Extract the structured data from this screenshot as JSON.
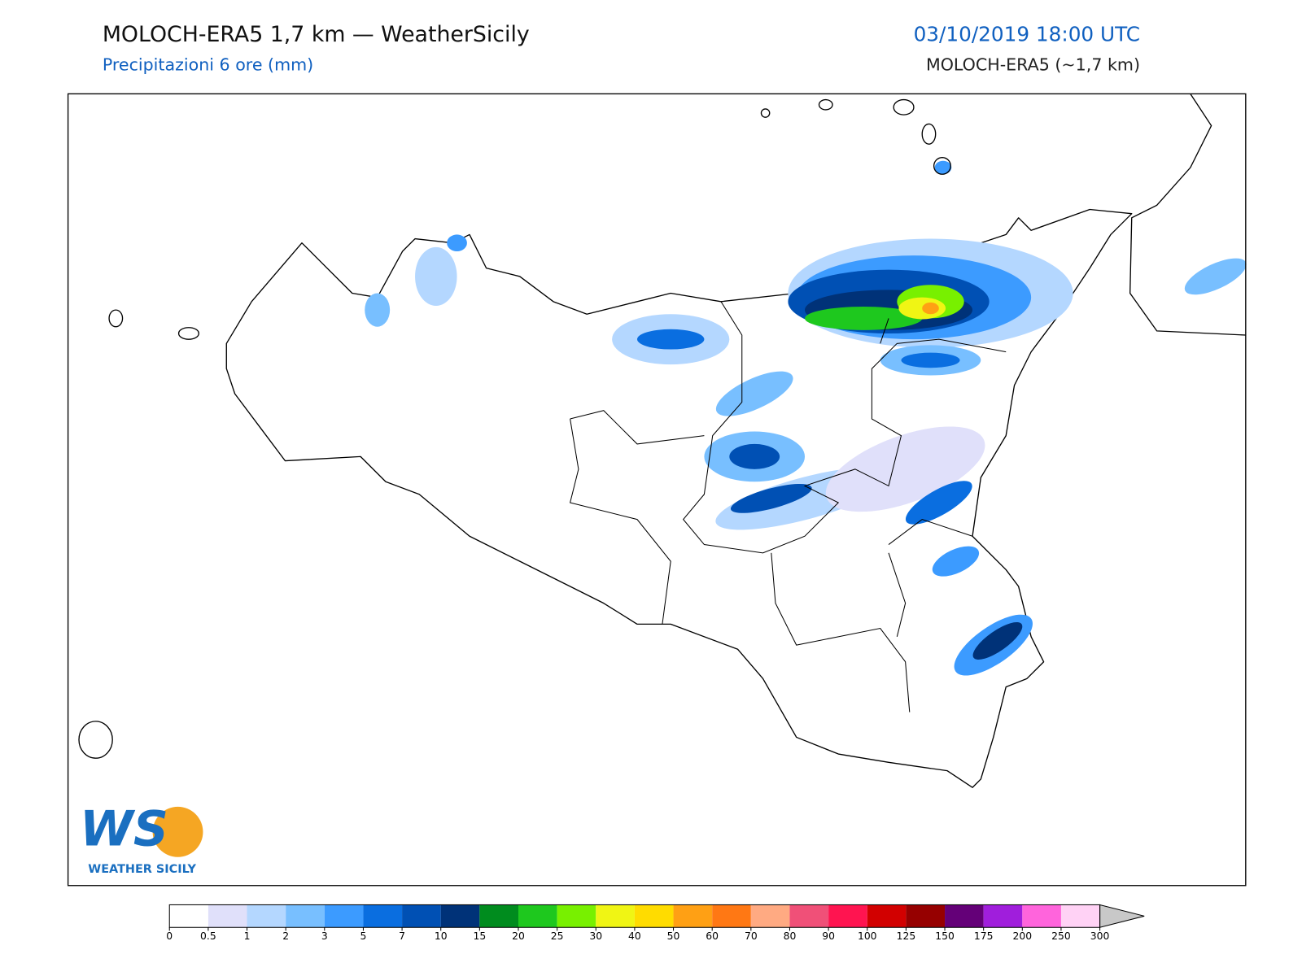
{
  "header": {
    "title": "MOLOCH-ERA5 1,7 km — WeatherSicily",
    "subtitle": "Precipitazioni 6 ore (mm)",
    "date": "03/10/2019 18:00 UTC",
    "model": "MOLOCH-ERA5 (~1,7 km)"
  },
  "logo": {
    "mark": "WS",
    "name": "WEATHER SICILY"
  },
  "colorbar": {
    "ticks": [
      0,
      0.5,
      1,
      2,
      3,
      5,
      7,
      10,
      15,
      20,
      25,
      30,
      40,
      50,
      60,
      70,
      80,
      90,
      100,
      125,
      150,
      175,
      200,
      250,
      300
    ],
    "colors": [
      "#ffffff",
      "#e0e0fa",
      "#b4d7ff",
      "#78bfff",
      "#3c9bff",
      "#0a6ee0",
      "#0050b4",
      "#003278",
      "#008c1e",
      "#1ec81e",
      "#78f000",
      "#f0f514",
      "#ffdc00",
      "#ffa014",
      "#ff7814",
      "#ffaa82",
      "#f05078",
      "#ff1450",
      "#d20000",
      "#960000",
      "#640078",
      "#a01edc",
      "#ff64dc",
      "#ffd2f5"
    ],
    "extend_color": "#c8c8c8"
  }
}
